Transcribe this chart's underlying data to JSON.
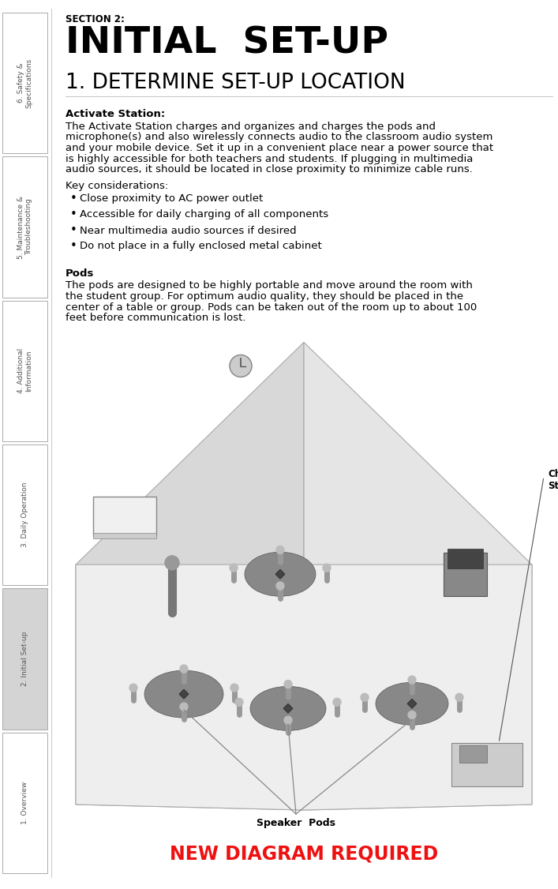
{
  "section_label": "SECTION 2:",
  "title": "INITIAL  SET-UP",
  "subtitle": "1. DETERMINE SET-UP LOCATION",
  "activate_heading": "Activate Station:",
  "activate_body_lines": [
    "The Activate Station charges and organizes and charges the pods and",
    "microphone(s) and also wirelessly connects audio to the classroom audio system",
    "and your mobile device. Set it up in a convenient place near a power source that",
    "is highly accessible for both teachers and students. If plugging in multimedia",
    "audio sources, it should be located in close proximity to minimize cable runs."
  ],
  "key_considerations": "Key considerations:",
  "bullets": [
    "Close proximity to AC power outlet",
    "Accessible for daily charging of all components",
    "Near multimedia audio sources if desired",
    "Do not place in a fully enclosed metal cabinet"
  ],
  "pods_heading": "Pods",
  "pods_body_lines": [
    "The pods are designed to be highly portable and move around the room with",
    "the student group. For optimum audio quality, they should be placed in the",
    "center of a table or group. Pods can be taken out of the room up to about 100",
    "feet before communication is lost."
  ],
  "diagram_label_charging": "Charging\nStation",
  "diagram_label_pods": "Speaker  Pods",
  "new_diagram": "NEW DIAGRAM REQUIRED",
  "new_diagram_color": "#EE1111",
  "sidebar_items": [
    "6. Safety &\nSpecifications",
    "5. Maintenance &\nTroubleshooting",
    "4. Additional\nInformation",
    "3. Daily Operation",
    "2. Initial Set-up",
    "1. Overview"
  ],
  "sidebar_active_index": 4,
  "sidebar_bg_active": "#D4D4D4",
  "sidebar_bg_inactive": "#FFFFFF",
  "sidebar_border": "#AAAAAA",
  "bg_color": "#FFFFFF",
  "text_color": "#000000",
  "section_fontsize": 8.5,
  "title_fontsize": 34,
  "subtitle_fontsize": 19,
  "body_fontsize": 9.5,
  "heading_fontsize": 9.5,
  "sidebar_fontsize": 6.5
}
